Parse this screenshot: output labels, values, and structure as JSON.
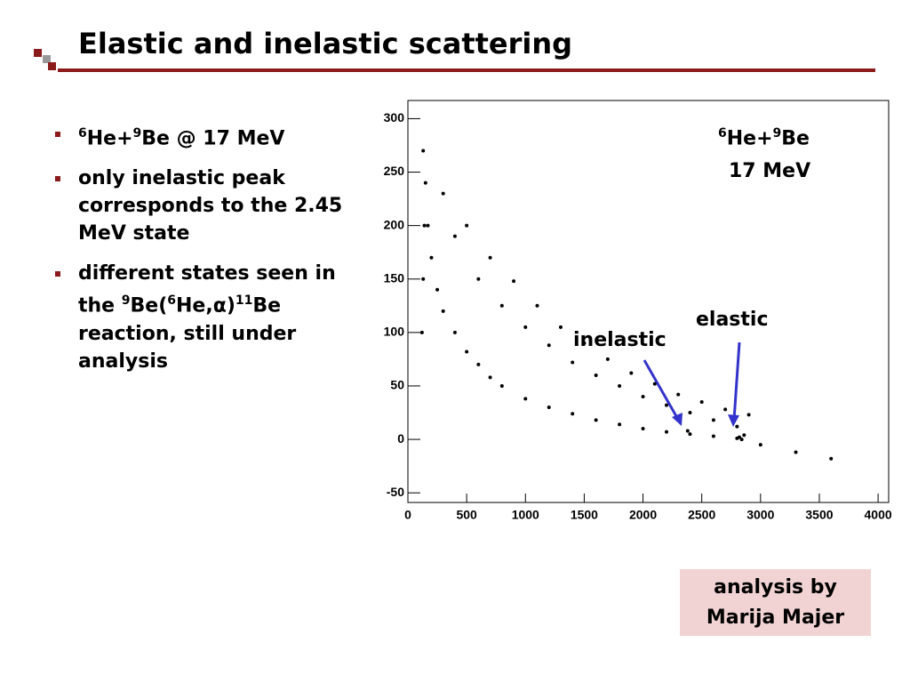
{
  "header": {
    "title": "Elastic and inelastic scattering"
  },
  "bullets": [
    [
      {
        "sup": "6"
      },
      {
        "text": "He+"
      },
      {
        "sup": "9"
      },
      {
        "text": "Be @ 17 MeV"
      }
    ],
    [
      {
        "text": "only inelastic peak corresponds to the 2.45 MeV state"
      }
    ],
    [
      {
        "text": "different states seen in the "
      },
      {
        "sup": "9"
      },
      {
        "text": "Be("
      },
      {
        "sup": "6"
      },
      {
        "text": "He,α)"
      },
      {
        "sup": "11"
      },
      {
        "text": "Be reaction, still under analysis"
      }
    ]
  ],
  "credit": {
    "line1": "analysis by",
    "line2": "Marija Majer"
  },
  "chart_data": {
    "type": "scatter",
    "color": "#000000",
    "annotations": {
      "reaction": [
        {
          "sup": "6"
        },
        {
          "text": "He+"
        },
        {
          "sup": "9"
        },
        {
          "text": "Be"
        }
      ],
      "energy": "17 MeV",
      "inelastic": "inelastic",
      "elastic": "elastic"
    },
    "xlim": [
      0,
      4090
    ],
    "ylim": [
      -59,
      317
    ],
    "xticks": [
      0,
      500,
      1000,
      1500,
      2000,
      2500,
      3000,
      3500,
      4000
    ],
    "yticks": [
      -50,
      0,
      50,
      100,
      150,
      200,
      250,
      300
    ],
    "x": [
      130,
      150,
      170,
      200,
      250,
      300,
      400,
      500,
      600,
      700,
      800,
      1000,
      1200,
      1400,
      1600,
      1800,
      2000,
      2200,
      2400,
      2600,
      2800,
      300,
      500,
      700,
      900,
      1100,
      1300,
      1500,
      1700,
      1900,
      2100,
      2300,
      2500,
      2700,
      2900,
      400,
      600,
      800,
      1000,
      1200,
      1400,
      1600,
      1800,
      2000,
      2200,
      2400,
      2600,
      2800,
      120,
      130,
      140,
      2380,
      2820,
      2840,
      2860,
      3000,
      3300,
      3600
    ],
    "values": [
      270,
      240,
      200,
      170,
      140,
      120,
      100,
      82,
      70,
      58,
      50,
      38,
      30,
      24,
      18,
      14,
      10,
      7,
      5,
      3,
      1,
      230,
      200,
      170,
      148,
      125,
      105,
      90,
      75,
      62,
      52,
      42,
      35,
      28,
      23,
      190,
      150,
      125,
      105,
      88,
      72,
      60,
      50,
      40,
      32,
      25,
      18,
      12,
      100,
      150,
      200,
      8,
      2,
      0,
      4,
      -5,
      -12,
      -18
    ]
  }
}
